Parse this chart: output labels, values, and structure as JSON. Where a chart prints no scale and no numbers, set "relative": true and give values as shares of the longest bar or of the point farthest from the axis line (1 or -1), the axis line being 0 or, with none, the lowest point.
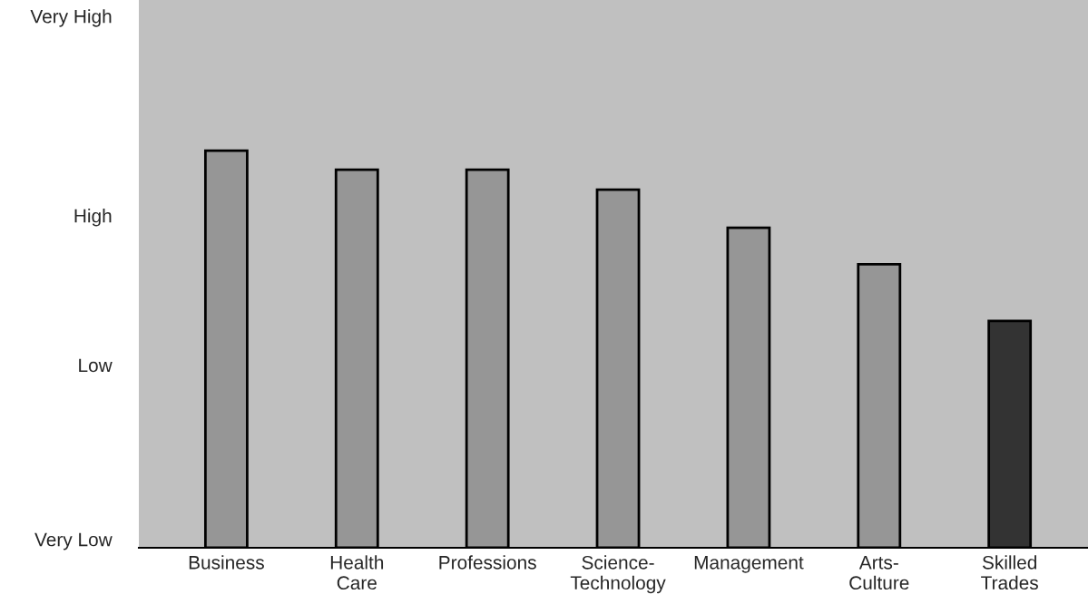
{
  "chart_data": {
    "type": "bar",
    "categories": [
      "Business",
      "Health\nCare",
      "Professions",
      "Science-\nTechnology",
      "Management",
      "Arts-\nCulture",
      "Skilled\nTrades"
    ],
    "values": [
      1,
      0.952,
      0.952,
      0.902,
      0.806,
      0.714,
      0.571
    ],
    "colors": [
      "#969696",
      "#969696",
      "#969696",
      "#969696",
      "#969696",
      "#969696",
      "#333333"
    ],
    "relative": true,
    "annotations": [
      "Very Low",
      "Low",
      "High",
      "Very High"
    ],
    "grid": false
  }
}
